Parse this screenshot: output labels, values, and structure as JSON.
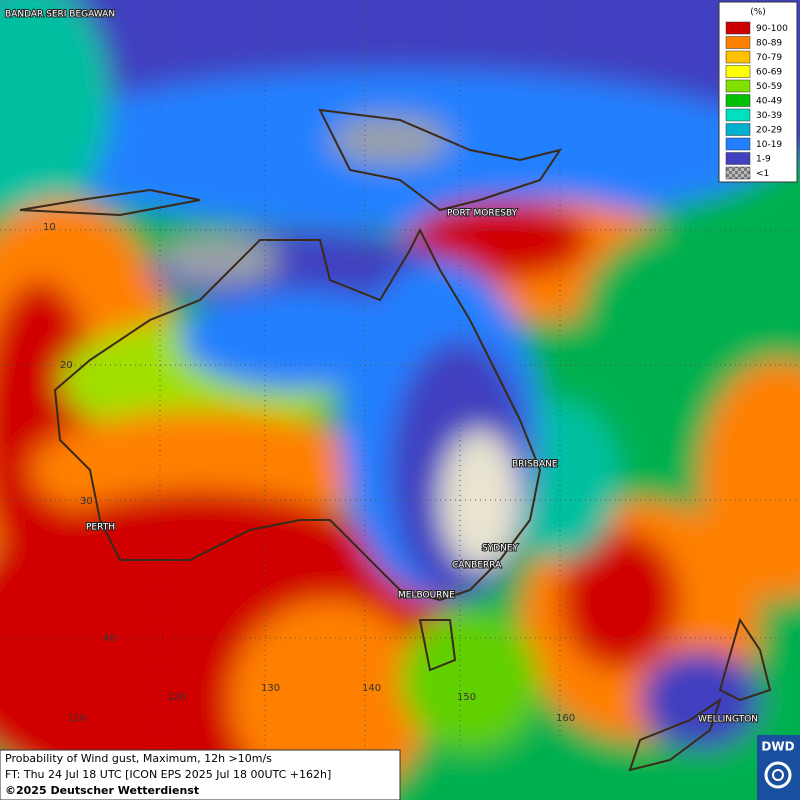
{
  "legend": {
    "title": "(%)",
    "items": [
      {
        "label": "90-100",
        "color": "#cc0000"
      },
      {
        "label": "80-89",
        "color": "#ff7f00"
      },
      {
        "label": "70-79",
        "color": "#ffc000"
      },
      {
        "label": "60-69",
        "color": "#ffff00"
      },
      {
        "label": "50-59",
        "color": "#80e000"
      },
      {
        "label": "40-49",
        "color": "#00c000"
      },
      {
        "label": "30-39",
        "color": "#00e0c0"
      },
      {
        "label": "20-29",
        "color": "#00b0d0"
      },
      {
        "label": "10-19",
        "color": "#2080ff"
      },
      {
        "label": "1-9",
        "color": "#4040c0"
      },
      {
        "label": "<1",
        "color": "#a0a0a0"
      }
    ]
  },
  "cities": [
    {
      "label": "BANDAR SERI BEGAWAN"
    },
    {
      "label": "PORT MORESBY"
    },
    {
      "label": "BRISBANE"
    },
    {
      "label": "SYDNEY"
    },
    {
      "label": "CANBERRA"
    },
    {
      "label": "MELBOURNE"
    },
    {
      "label": "PERTH"
    },
    {
      "label": "WELLINGTON"
    }
  ],
  "grid_labels": [
    "10",
    "20",
    "30",
    "40",
    "110",
    "120",
    "130",
    "140",
    "150",
    "160"
  ],
  "caption": {
    "line1": "Probability of Wind gust, Maximum, 12h >10m/s",
    "line2": "FT: Thu 24 Jul 18 UTC [ICON EPS 2025 Jul 18 00UTC +162h]",
    "line3": "©2025 Deutscher Wetterdienst"
  },
  "logo": "DWD"
}
